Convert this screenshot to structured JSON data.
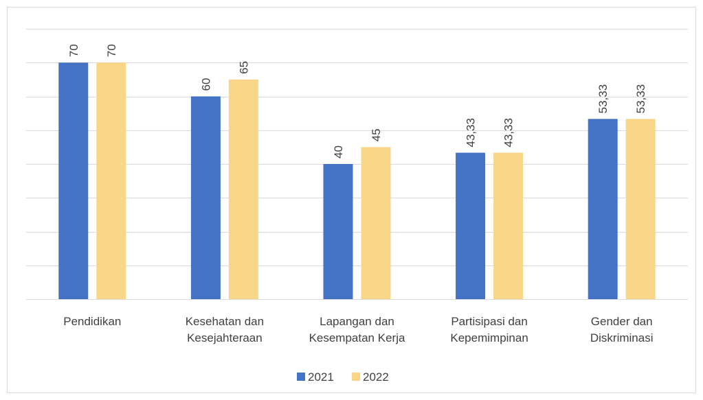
{
  "chart_data": {
    "type": "bar",
    "categories": [
      "Pendidikan",
      "Kesehatan dan Kesejahteraan",
      "Lapangan dan Kesempatan Kerja",
      "Partisipasi dan Kepemimpinan",
      "Gender dan Diskriminasi"
    ],
    "series": [
      {
        "name": "2021",
        "color": "#4472c4",
        "values": [
          70,
          60,
          40,
          43.33,
          53.33
        ],
        "value_labels": [
          "70",
          "60",
          "40",
          "43,33",
          "53,33"
        ]
      },
      {
        "name": "2022",
        "color": "#f9d588",
        "values": [
          70,
          65,
          45,
          43.33,
          53.33
        ],
        "value_labels": [
          "70",
          "65",
          "45",
          "43,33",
          "53,33"
        ]
      }
    ],
    "ylim": [
      0,
      80
    ],
    "yticks": [
      0,
      10,
      20,
      30,
      40,
      50,
      60,
      70,
      80
    ],
    "grid": true,
    "legend": "bottom"
  }
}
